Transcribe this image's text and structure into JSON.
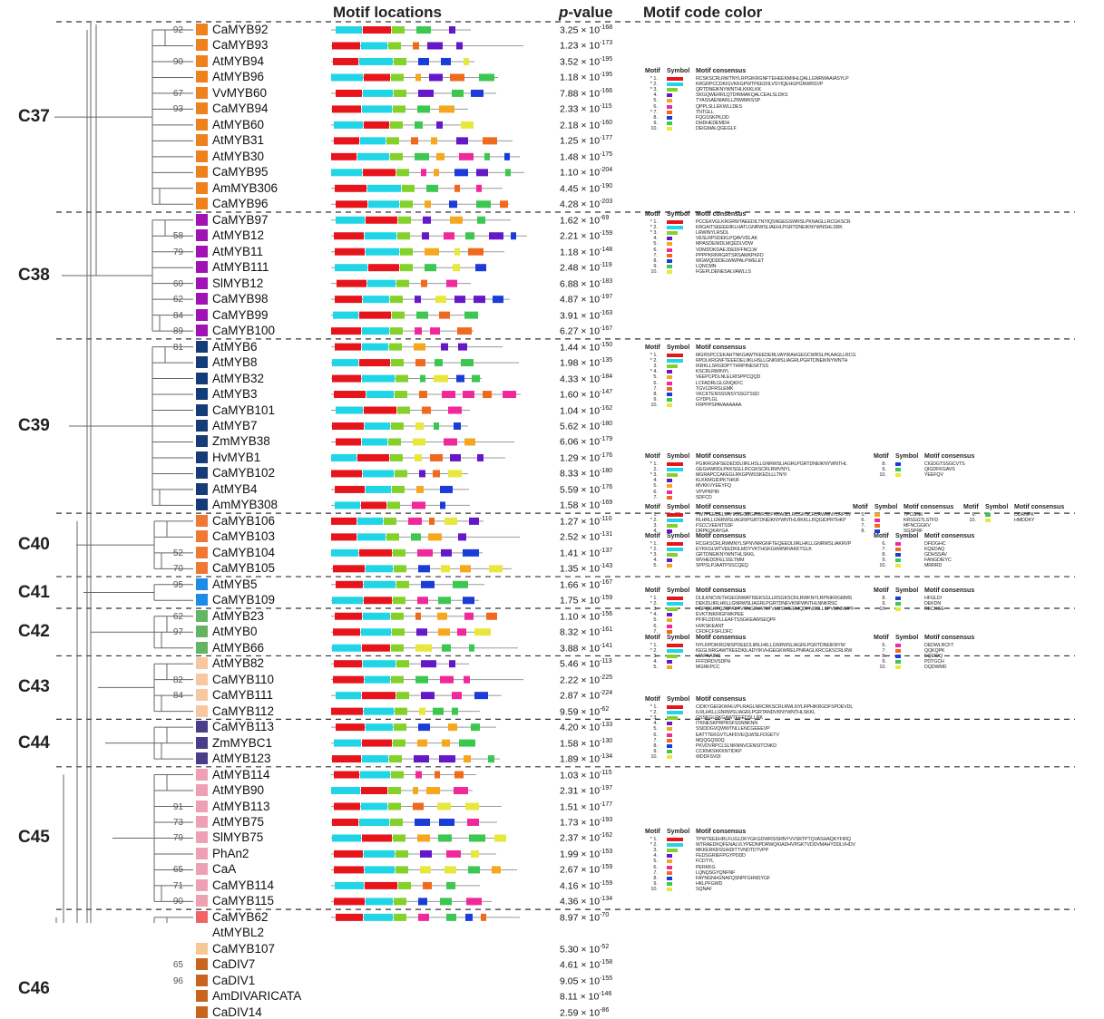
{
  "headers": {
    "motif_locations": "Motif locations",
    "p_value_prefix": "p",
    "p_value_suffix": "-value",
    "motif_code_color": "Motif code color"
  },
  "legend_headers": {
    "motif": "Motif",
    "symbol": "Symbol",
    "consensus": "Motif consensus"
  },
  "motif_colors": [
    "#e8141c",
    "#20d5e6",
    "#84d12a",
    "#6418c8",
    "#f5a81d",
    "#f0289a",
    "#f06a1e",
    "#1a3cd8",
    "#3cc850",
    "#e8e83c"
  ],
  "groups": [
    {
      "label": "C37",
      "genes": [
        {
          "name": "CaMYB92",
          "color": "#f0821e",
          "boot": "92",
          "p": "3.25",
          "e": "-168"
        },
        {
          "name": "CaMYB93",
          "color": "#f0821e",
          "boot": "",
          "p": "1.23",
          "e": "-173"
        },
        {
          "name": "AtMYB94",
          "color": "#f0821e",
          "boot": "90",
          "p": "3.52",
          "e": "-195"
        },
        {
          "name": "AtMYB96",
          "color": "#f0821e",
          "boot": "",
          "p": "1.18",
          "e": "-195"
        },
        {
          "name": "VvMYB60",
          "color": "#f0821e",
          "boot": "67",
          "p": "7.88",
          "e": "-166"
        },
        {
          "name": "CaMYB94",
          "color": "#f0821e",
          "boot": "93",
          "p": "2.33",
          "e": "-115"
        },
        {
          "name": "AtMYB60",
          "color": "#f0821e",
          "boot": "",
          "p": "2.18",
          "e": "-160"
        },
        {
          "name": "AtMYB31",
          "color": "#f0821e",
          "boot": "",
          "p": "1.25",
          "e": "-177"
        },
        {
          "name": "AtMYB30",
          "color": "#f0821e",
          "boot": "",
          "p": "1.48",
          "e": "-175"
        },
        {
          "name": "CaMYB95",
          "color": "#f0821e",
          "boot": "",
          "p": "1.10",
          "e": "-204"
        },
        {
          "name": "AmMYB306",
          "color": "#f0821e",
          "boot": "",
          "p": "4.45",
          "e": "-190"
        },
        {
          "name": "CaMYB96",
          "color": "#f0821e",
          "boot": "",
          "p": "4.28",
          "e": "-203"
        }
      ]
    },
    {
      "label": "C38",
      "genes": [
        {
          "name": "CaMYB97",
          "color": "#a012b4",
          "boot": "",
          "p": "1.62",
          "e": "-69"
        },
        {
          "name": "AtMYB12",
          "color": "#a012b4",
          "boot": "58",
          "p": "2.21",
          "e": "-159"
        },
        {
          "name": "AtMYB11",
          "color": "#a012b4",
          "boot": "79",
          "p": "1.18",
          "e": "-148"
        },
        {
          "name": "AtMYB111",
          "color": "#a012b4",
          "boot": "",
          "p": "2.48",
          "e": "-119"
        },
        {
          "name": "SlMYB12",
          "color": "#a012b4",
          "boot": "60",
          "p": "6.88",
          "e": "-183"
        },
        {
          "name": "CaMYB98",
          "color": "#a012b4",
          "boot": "62",
          "p": "4.87",
          "e": "-197"
        },
        {
          "name": "CaMYB99",
          "color": "#a012b4",
          "boot": "84",
          "p": "3.91",
          "e": "-163"
        },
        {
          "name": "CaMYB100",
          "color": "#a012b4",
          "boot": "89",
          "p": "6.27",
          "e": "-167"
        }
      ]
    },
    {
      "label": "C39",
      "genes": [
        {
          "name": "AtMYB6",
          "color": "#143c78",
          "boot": "81",
          "p": "1.44",
          "e": "-150"
        },
        {
          "name": "AtMYB8",
          "color": "#143c78",
          "boot": "",
          "p": "1.98",
          "e": "-135"
        },
        {
          "name": "AtMYB32",
          "color": "#143c78",
          "boot": "",
          "p": "4.33",
          "e": "-184"
        },
        {
          "name": "AtMYB3",
          "color": "#143c78",
          "boot": "",
          "p": "1.60",
          "e": "-147"
        },
        {
          "name": "CaMYB101",
          "color": "#143c78",
          "boot": "",
          "p": "1.04",
          "e": "-162"
        },
        {
          "name": "AtMYB7",
          "color": "#143c78",
          "boot": "",
          "p": "5.62",
          "e": "-180"
        },
        {
          "name": "ZmMYB38",
          "color": "#143c78",
          "boot": "",
          "p": "6.06",
          "e": "-179"
        },
        {
          "name": "HvMYB1",
          "color": "#143c78",
          "boot": "",
          "p": "1.29",
          "e": "-176"
        },
        {
          "name": "CaMYB102",
          "color": "#143c78",
          "boot": "",
          "p": "8.33",
          "e": "-180"
        },
        {
          "name": "AtMYB4",
          "color": "#143c78",
          "boot": "",
          "p": "5.59",
          "e": "-176"
        },
        {
          "name": "AmMYB308",
          "color": "#143c78",
          "boot": "",
          "p": "1.58",
          "e": "-169"
        }
      ]
    },
    {
      "label": "C40",
      "genes": [
        {
          "name": "CaMYB106",
          "color": "#f07832",
          "boot": "",
          "p": "1.27",
          "e": "-110"
        },
        {
          "name": "CaMYB103",
          "color": "#f07832",
          "boot": "",
          "p": "2.52",
          "e": "-131"
        },
        {
          "name": "CaMYB104",
          "color": "#f07832",
          "boot": "52",
          "p": "1.41",
          "e": "-137"
        },
        {
          "name": "CaMYB105",
          "color": "#f07832",
          "boot": "70",
          "p": "1.35",
          "e": "-143"
        }
      ]
    },
    {
      "label": "C41",
      "genes": [
        {
          "name": "AtMYB5",
          "color": "#1e8ce6",
          "boot": "95",
          "p": "1.66",
          "e": "-167"
        },
        {
          "name": "CaMYB109",
          "color": "#1e8ce6",
          "boot": "",
          "p": "1.75",
          "e": "-159"
        }
      ]
    },
    {
      "label": "C42",
      "genes": [
        {
          "name": "AtMYB23",
          "color": "#64b464",
          "boot": "62",
          "p": "1.10",
          "e": "-156"
        },
        {
          "name": "AtMYB0",
          "color": "#64b464",
          "boot": "97",
          "p": "8.32",
          "e": "-161"
        },
        {
          "name": "AtMYB66",
          "color": "#64b464",
          "boot": "",
          "p": "3.88",
          "e": "-141"
        }
      ]
    },
    {
      "label": "C43",
      "genes": [
        {
          "name": "AtMYB82",
          "color": "#f5c8a0",
          "boot": "",
          "p": "5.46",
          "e": "-113"
        },
        {
          "name": "CaMYB110",
          "color": "#f5c8a0",
          "boot": "82",
          "p": "2.22",
          "e": "-225"
        },
        {
          "name": "CaMYB111",
          "color": "#f5c8a0",
          "boot": "84",
          "p": "2.87",
          "e": "-224"
        },
        {
          "name": "CaMYB112",
          "color": "#f5c8a0",
          "boot": "",
          "p": "9.59",
          "e": "-62"
        }
      ]
    },
    {
      "label": "C44",
      "genes": [
        {
          "name": "CaMYB113",
          "color": "#4b3c8c",
          "boot": "",
          "p": "4.20",
          "e": "-133"
        },
        {
          "name": "ZmMYBC1",
          "color": "#4b3c8c",
          "boot": "",
          "p": "1.58",
          "e": "-130"
        },
        {
          "name": "AtMYB123",
          "color": "#4b3c8c",
          "boot": "",
          "p": "1.89",
          "e": "-134"
        }
      ]
    },
    {
      "label": "C45",
      "genes": [
        {
          "name": "AtMYB114",
          "color": "#f0a0b4",
          "boot": "",
          "p": "1.03",
          "e": "-115"
        },
        {
          "name": "AtMYB90",
          "color": "#f0a0b4",
          "boot": "",
          "p": "2.31",
          "e": "-197"
        },
        {
          "name": "AtMYB113",
          "color": "#f0a0b4",
          "boot": "91",
          "p": "1.51",
          "e": "-177"
        },
        {
          "name": "AtMYB75",
          "color": "#f0a0b4",
          "boot": "73",
          "p": "1.73",
          "e": "-193"
        },
        {
          "name": "SlMYB75",
          "color": "#f0a0b4",
          "boot": "79",
          "p": "2.37",
          "e": "-162"
        },
        {
          "name": "PhAn2",
          "color": "#f0a0b4",
          "boot": "",
          "p": "1.99",
          "e": "-153"
        },
        {
          "name": "CaA",
          "color": "#f0a0b4",
          "boot": "65",
          "p": "2.67",
          "e": "-159"
        },
        {
          "name": "CaMYB114",
          "color": "#f0a0b4",
          "boot": "71",
          "p": "4.16",
          "e": "-159"
        },
        {
          "name": "CaMYB115",
          "color": "#f0a0b4",
          "boot": "90",
          "p": "4.36",
          "e": "-134"
        }
      ]
    },
    {
      "label": "",
      "genes": [
        {
          "name": "CaMYB62",
          "color": "#f06464",
          "boot": "",
          "p": "8.97",
          "e": "-70"
        },
        {
          "name": "AtMYBL2",
          "color": "",
          "boot": "",
          "p": "",
          "e": ""
        },
        {
          "name": "CaMYB107",
          "color": "#f5c896",
          "boot": "",
          "p": "5.30",
          "e": "-52"
        }
      ]
    },
    {
      "label": "C46",
      "genes": [
        {
          "name": "CaDIV7",
          "color": "#c8641e",
          "boot": "65",
          "p": "4.61",
          "e": "-158"
        },
        {
          "name": "CaDIV1",
          "color": "#c8641e",
          "boot": "96",
          "p": "9.05",
          "e": "-155"
        },
        {
          "name": "AmDIVARICATA",
          "color": "#c8641e",
          "boot": "",
          "p": "8.11",
          "e": "-146"
        },
        {
          "name": "CaDIV14",
          "color": "#c8641e",
          "boot": "",
          "p": "2.59",
          "e": "-86"
        }
      ]
    }
  ],
  "legends": [
    {
      "group": "C37",
      "cols": [
        [
          [
            "* 1.",
            "RCSKSCRLRWTNYLRPGIKRGNFTEHEEKMIIHLQALLGNRWAAIASYLP"
          ],
          [
            "* 2.",
            "KRGRPCCDKIGVKKGPWTPEEDIILVSYIQEHGPGNWRSVP"
          ],
          [
            "* 3.",
            "QRTDNEIKNYWNTHLKKKLKK"
          ],
          [
            "4.",
            "SKGQWERRLQTDINMAKQALCEALSLDKS"
          ],
          [
            "5.",
            "TYASSAENIARLLZNWMKSSP"
          ],
          [
            "6.",
            "QPPLSLLEKWLLDES"
          ],
          [
            "* 7.",
            "TNTGLL"
          ],
          [
            "8.",
            "FQGSSKPILDD"
          ],
          [
            "9.",
            "DHDHEDEMDH"
          ],
          [
            "10.",
            "DEIGMALQGEGLF"
          ]
        ]
      ]
    },
    {
      "group": "C38",
      "cols": [
        [
          [
            "* 1.",
            "PCCEKVGLKRGRWTAEEDILTNYIQSNGEGSWRSLPKNAGLLRCGKSCR"
          ],
          [
            "* 2.",
            "KRGAITSEEEEIIKLHATLGNRWSLIAEHLPGRTDNEIKNYWNSHLSRK"
          ],
          [
            "* 3.",
            "LRWINYLRSDL"
          ],
          [
            "4.",
            "VESLRPSDEKLPQAVVDLAK"
          ],
          [
            "5.",
            "MPASDENIDLMQEDLVDW"
          ],
          [
            "6.",
            "VDMDDKDAEJDEDFFNCLW"
          ],
          [
            "7.",
            "PPPPKRRRGRTSRSAMKPKFD"
          ],
          [
            "8.",
            "WGWQDDDELWWPALPWELET"
          ],
          [
            "9.",
            "LQNCMN"
          ],
          [
            "10.",
            "FGEPLDENESALVAWLLS"
          ]
        ]
      ]
    },
    {
      "group": "C39",
      "cols": [
        [
          [
            "* 1.",
            "MGRSPCCEKAHTNKGAWTKEEDERLVAYIRAHGEGCWRSLPKAAGLLRCG"
          ],
          [
            "* 2.",
            "RPDLKRGNFTEEEDELIIKLHSLLGNKWSLIAGRLPGRTDNEIKNYWNTH"
          ],
          [
            "3.",
            "IKRKLLSRGIDPTTHRPINESKTSS"
          ],
          [
            "* 4.",
            "KSCRLRWINYL"
          ],
          [
            "5.",
            "VEEPCPDLNLELRISPPCQQD"
          ],
          [
            "6.",
            "LCFADRLGLGNQKFC"
          ],
          [
            "7.",
            "TGVLDFRSLEMK"
          ],
          [
            "8.",
            "VKCKTENSSSNSYSSGTSSD"
          ],
          [
            "9.",
            "GYDPLGL"
          ],
          [
            "10.",
            "FRPPPSPAVAAAAAA"
          ]
        ]
      ]
    },
    {
      "group": "C40",
      "cols": [
        [
          [
            "* 1.",
            "PGIKRGNFSEDEDDLIIRLHSLLGNRWSLIAGRLPGRTDNEIKNYWNTHL"
          ],
          [
            "2.",
            "GEGHWRDLPKKSGLLRCGKSCRLRWVNYL"
          ],
          [
            "* 3.",
            "MGRAPCCAKEGLRKGPWSSKEDLLLTNYI"
          ],
          [
            "4.",
            "KLKKMGIDPKTHKIF"
          ],
          [
            "5.",
            "MVKKVYEEYFQ"
          ],
          [
            "6.",
            "VPVPKPIR"
          ],
          [
            "7.",
            "SDFCD"
          ]
        ],
        [
          [
            "8.",
            "CIGDGTSSGCVTS"
          ],
          [
            "9.",
            "QIGDFKGAVS"
          ],
          [
            "10.",
            "YEEFQV"
          ]
        ]
      ]
    },
    {
      "group": "C41",
      "cols": [
        [
          [
            "* 1.",
            "TWTPEEDELVAYIKKEGEGRWRSLPKKAGLLRCGKSCRLRWMNYLRPSV"
          ],
          [
            "* 2.",
            "RLHRLLGNRWSLIAGRIPGRTDNEIKNYWNTHLRKKLLRQGIDPRTHKP"
          ],
          [
            "3.",
            "FSCCVEENTSSF"
          ],
          [
            "4.",
            "DRPKQKAYGA"
          ]
        ],
        [
          [
            "5.",
            "TPCGNK"
          ],
          [
            "6.",
            "KRSGGTLSTFD"
          ],
          [
            "7.",
            "MFNCGGKV"
          ],
          [
            "8.",
            "SGSPRF"
          ]
        ],
        [
          [
            "9.",
            "DDRNPK"
          ],
          [
            "10.",
            "HMDDKY"
          ]
        ]
      ]
    },
    {
      "group": "C42",
      "cols": [
        [
          [
            "* 1.",
            "RCGKSCRLRWMNYLSPNVNRGNFTEQEEDLIIRLHKLLGNRWSLIAKRVP"
          ],
          [
            "* 2.",
            "EYKKGLWTVEEDKILMDYVKTHGKGHWNRIAKKTGLK"
          ],
          [
            "* 3.",
            "GRTDNEIKNYWNTHLSKKL"
          ],
          [
            "4.",
            "WVHEDDFELSSLTMM"
          ],
          [
            "5.",
            "SPPSLPJAATPSSCQEQ"
          ]
        ],
        [
          [
            "6.",
            "DFIDGHC"
          ],
          [
            "7.",
            "KQEDAQ"
          ],
          [
            "8.",
            "GDHSSAV"
          ],
          [
            "9.",
            "FANGDIEYC"
          ],
          [
            "10.",
            "MRRRD"
          ]
        ]
      ]
    },
    {
      "group": "C43",
      "cols": [
        [
          [
            "* 1.",
            "DLILKNCVETHGEGNWATISEKSGLLRSGKSCRLRWKNYLRPNIKRGMMS"
          ],
          [
            "* 2.",
            "DEKDLIIRLHKLLGNRWSLIAGRLPGRTDNEVKNFWNTHLNNKRSC"
          ],
          [
            "3.",
            "HSPQGKTQZCPAETVRNGEVATKTVLDSWIEEMQDFNCSLLSPVMNNMPF"
          ],
          [
            "* 4.",
            "EVKTINKRIGFWKPEE"
          ],
          [
            "5.",
            "PFIFLDDIVLLEAFTSSGKEAWSEQPF"
          ],
          [
            "6.",
            "HVKSKEANT"
          ],
          [
            "7.",
            "CFDFCFSFLDFC"
          ]
        ],
        [
          [
            "8.",
            "HFGLDI"
          ],
          [
            "9.",
            "DEKDN"
          ],
          [
            "10.",
            "RECKGE"
          ]
        ]
      ]
    },
    {
      "group": "C44",
      "cols": [
        [
          [
            "* 1.",
            "NYLRPDIKRGNISPDEEDLIIRLHKLLGNRWSLIAGRLPGRTDNEIKNYW"
          ],
          [
            "* 2.",
            "KEGLNRGAWTKEEDKILADYIKVHGEGKWRELPNRAGLKRCGKSCRLRW"
          ],
          [
            "3.",
            "VIAPKAIRC"
          ],
          [
            "4.",
            "FFFDRDVSDPH"
          ],
          [
            "5.",
            "MGRKPCC"
          ]
        ],
        [
          [
            "6.",
            "DEDWLRCFT"
          ],
          [
            "7.",
            "QQKQPK"
          ],
          [
            "8.",
            "EQEIDQ"
          ],
          [
            "9.",
            "PDTGCH"
          ],
          [
            "10.",
            "DQDWMD"
          ]
        ]
      ]
    },
    {
      "group": "C45",
      "cols": [
        [
          [
            "* 1.",
            "CIDKYGEGKWHLVPLRAGLNRCRKSCRLRWLNYLRPHIKRGDFSPDEVDL"
          ],
          [
            "* 2.",
            "ILRLHKLLGNRWSLIAGRLPGRTANDVKNYWNTHLSKKL"
          ],
          [
            "* 3.",
            "GSSKGLRKGAWTEEEDSLLRK"
          ],
          [
            "4.",
            "ITKNESKPRPRSFSSNNKNN"
          ],
          [
            "5.",
            "SSIDDGVQWWTNLLENCGEEEVP"
          ],
          [
            "6.",
            "EATTTEKGVTLAFDVEQLWSLFDGETV"
          ],
          [
            "7.",
            "MQQGQSDQ"
          ],
          [
            "8.",
            "PKVDVRPCLSLNKNNVCENSITCNKD"
          ],
          [
            "9.",
            "CCKNKSKKKNTIDKP"
          ],
          [
            "10.",
            "WDDFSVDI"
          ]
        ]
      ]
    },
    {
      "group": "C46",
      "cols": [
        [
          [
            "* 1.",
            "TPWTEEEHRLFLIGLDKYGKGDWRSISRNYVVSRTPTQVASHAQKYFIRQ"
          ],
          [
            "* 2.",
            "WTRAEDKQFENALVLYPEDNPDRWQKIADHVPGKTVDDVMAHYDDLVHDV"
          ],
          [
            "3.",
            "MKKERKRSSIHDITTVNDTDTVPP"
          ],
          [
            "4.",
            "FEDSGRIEFPGYPDDD"
          ],
          [
            "5.",
            "FCDTYL"
          ],
          [
            "6.",
            "PERKKG"
          ],
          [
            "7.",
            "LQNQSGYQNFNF"
          ],
          [
            "8.",
            "FAYNGNHGNAFQSNPFGHNSYGF"
          ],
          [
            "9.",
            "HKLPFGWD"
          ],
          [
            "10.",
            "SQNAF"
          ]
        ]
      ]
    }
  ]
}
